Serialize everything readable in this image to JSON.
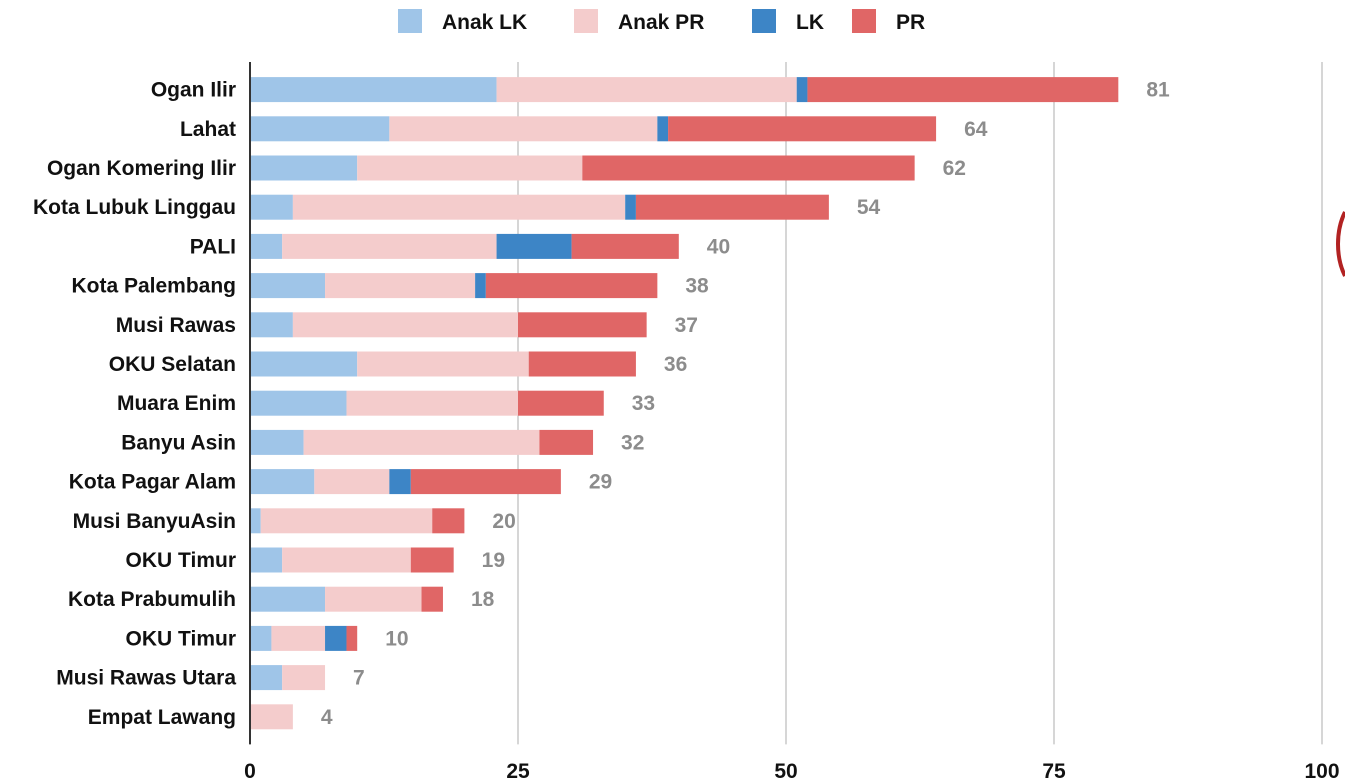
{
  "chart_data": {
    "type": "bar",
    "orientation": "horizontal",
    "stacked": true,
    "categories": [
      "Ogan Ilir",
      "Lahat",
      "Ogan Komering Ilir",
      "Kota Lubuk Linggau",
      "PALI",
      "Kota Palembang",
      "Musi Rawas",
      "OKU Selatan",
      "Muara Enim",
      "Banyu Asin",
      "Kota Pagar Alam",
      "Musi BanyuAsin",
      "OKU Timur",
      "Kota Prabumulih",
      "OKU Timur",
      "Musi Rawas Utara",
      "Empat Lawang"
    ],
    "series": [
      {
        "name": "Anak LK",
        "color": "#9fc5e8",
        "values": [
          23,
          13,
          10,
          4,
          3,
          7,
          4,
          10,
          9,
          5,
          6,
          1,
          3,
          7,
          2,
          3,
          0
        ]
      },
      {
        "name": "Anak PR",
        "color": "#f4cccc",
        "values": [
          28,
          25,
          21,
          31,
          20,
          14,
          21,
          16,
          16,
          22,
          7,
          16,
          12,
          9,
          5,
          4,
          4
        ]
      },
      {
        "name": "LK",
        "color": "#3d85c6",
        "values": [
          1,
          1,
          0,
          1,
          7,
          1,
          0,
          0,
          0,
          0,
          2,
          0,
          0,
          0,
          2,
          0,
          0
        ]
      },
      {
        "name": "PR",
        "color": "#e06666",
        "values": [
          29,
          25,
          31,
          18,
          10,
          16,
          12,
          10,
          8,
          5,
          14,
          3,
          4,
          2,
          1,
          0,
          0
        ]
      }
    ],
    "totals": [
      "81",
      "64",
      "62",
      "54",
      "40",
      "38",
      "37",
      "36",
      "33",
      "32",
      "29",
      "20",
      "19",
      "18",
      "10",
      "7",
      "4"
    ],
    "xlim": [
      0,
      100
    ],
    "xticks": [
      "0",
      "25",
      "50",
      "75",
      "100"
    ],
    "grid": true,
    "legend_position": "top"
  }
}
